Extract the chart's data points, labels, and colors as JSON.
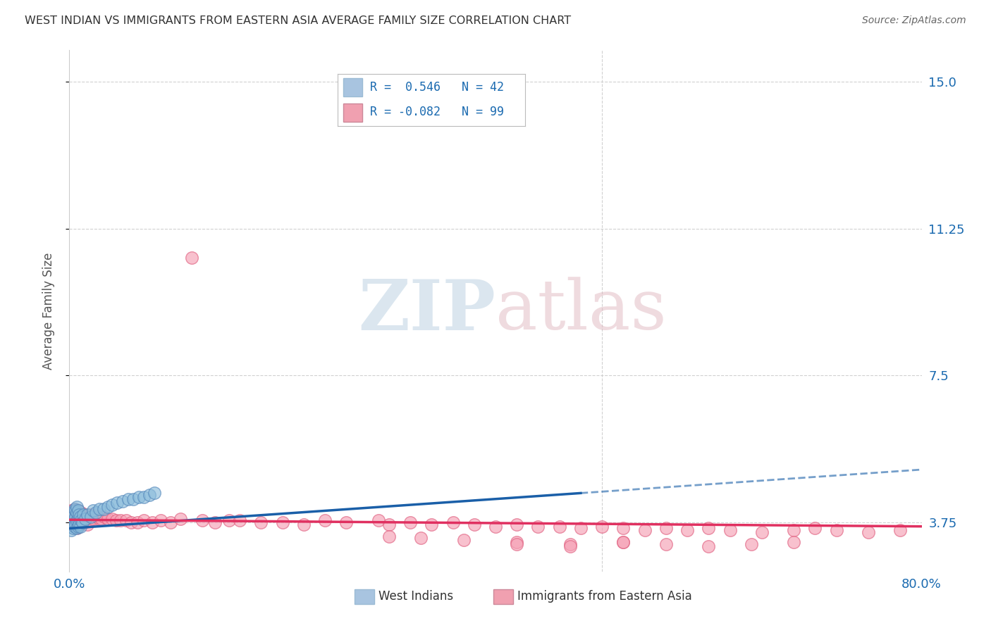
{
  "title": "WEST INDIAN VS IMMIGRANTS FROM EASTERN ASIA AVERAGE FAMILY SIZE CORRELATION CHART",
  "source": "Source: ZipAtlas.com",
  "ylabel": "Average Family Size",
  "xlim": [
    0.0,
    0.8
  ],
  "ylim": [
    2.5,
    15.8
  ],
  "yticks_right": [
    3.75,
    7.5,
    11.25,
    15.0
  ],
  "xticks": [
    0.0,
    0.1,
    0.2,
    0.3,
    0.4,
    0.5,
    0.6,
    0.7,
    0.8
  ],
  "background_color": "#ffffff",
  "grid_color": "#cccccc",
  "legend_color1": "#a8c4e0",
  "legend_color2": "#f0a0b0",
  "series1_color": "#8bbcdb",
  "series1_edge": "#5588bb",
  "series2_color": "#f5a0b5",
  "series2_edge": "#e06080",
  "trendline1_color": "#1a5fa8",
  "trendline2_color": "#e03060",
  "title_color": "#333333",
  "axis_value_color": "#1a6ab0",
  "source_color": "#666666",
  "west_indians_x": [
    0.002,
    0.003,
    0.003,
    0.004,
    0.004,
    0.005,
    0.005,
    0.005,
    0.006,
    0.006,
    0.006,
    0.007,
    0.007,
    0.007,
    0.007,
    0.008,
    0.008,
    0.008,
    0.009,
    0.009,
    0.01,
    0.01,
    0.011,
    0.012,
    0.013,
    0.015,
    0.017,
    0.02,
    0.022,
    0.025,
    0.028,
    0.032,
    0.036,
    0.04,
    0.045,
    0.05,
    0.055,
    0.06,
    0.065,
    0.07,
    0.075,
    0.08
  ],
  "west_indians_y": [
    3.55,
    3.75,
    4.0,
    3.6,
    3.9,
    3.65,
    3.85,
    4.1,
    3.7,
    3.9,
    4.05,
    3.6,
    3.8,
    4.0,
    4.15,
    3.65,
    3.85,
    4.05,
    3.7,
    3.95,
    3.65,
    3.9,
    3.8,
    3.75,
    3.95,
    3.85,
    3.95,
    3.9,
    4.05,
    4.0,
    4.1,
    4.1,
    4.15,
    4.2,
    4.25,
    4.3,
    4.35,
    4.35,
    4.4,
    4.4,
    4.45,
    4.5
  ],
  "east_asian_x": [
    0.001,
    0.002,
    0.002,
    0.003,
    0.003,
    0.004,
    0.004,
    0.005,
    0.005,
    0.005,
    0.006,
    0.006,
    0.006,
    0.007,
    0.007,
    0.007,
    0.008,
    0.008,
    0.008,
    0.009,
    0.009,
    0.01,
    0.01,
    0.011,
    0.011,
    0.012,
    0.013,
    0.014,
    0.015,
    0.016,
    0.017,
    0.018,
    0.019,
    0.02,
    0.022,
    0.024,
    0.026,
    0.028,
    0.03,
    0.033,
    0.036,
    0.04,
    0.044,
    0.048,
    0.053,
    0.058,
    0.064,
    0.07,
    0.078,
    0.086,
    0.095,
    0.104,
    0.115,
    0.125,
    0.137,
    0.15,
    0.16,
    0.18,
    0.2,
    0.22,
    0.24,
    0.26,
    0.29,
    0.3,
    0.32,
    0.34,
    0.36,
    0.38,
    0.4,
    0.42,
    0.44,
    0.46,
    0.48,
    0.5,
    0.52,
    0.54,
    0.56,
    0.58,
    0.6,
    0.62,
    0.65,
    0.68,
    0.7,
    0.72,
    0.75,
    0.78,
    0.3,
    0.33,
    0.37,
    0.42,
    0.47,
    0.52,
    0.42,
    0.47,
    0.52,
    0.56,
    0.6,
    0.64,
    0.68
  ],
  "east_asian_y": [
    3.75,
    3.9,
    4.05,
    3.7,
    3.95,
    3.75,
    4.0,
    3.7,
    3.9,
    4.1,
    3.65,
    3.85,
    4.05,
    3.6,
    3.8,
    4.0,
    3.65,
    3.85,
    4.05,
    3.7,
    3.9,
    3.75,
    3.95,
    3.8,
    4.0,
    3.85,
    3.95,
    3.75,
    3.85,
    3.95,
    3.7,
    3.9,
    3.8,
    3.95,
    3.85,
    3.95,
    3.9,
    3.85,
    3.85,
    3.9,
    3.85,
    3.85,
    3.8,
    3.8,
    3.8,
    3.75,
    3.75,
    3.8,
    3.75,
    3.8,
    3.75,
    3.85,
    10.5,
    3.8,
    3.75,
    3.8,
    3.8,
    3.75,
    3.75,
    3.7,
    3.8,
    3.75,
    3.8,
    3.7,
    3.75,
    3.7,
    3.75,
    3.7,
    3.65,
    3.7,
    3.65,
    3.65,
    3.6,
    3.65,
    3.6,
    3.55,
    3.6,
    3.55,
    3.6,
    3.55,
    3.5,
    3.55,
    3.6,
    3.55,
    3.5,
    3.55,
    3.4,
    3.35,
    3.3,
    3.25,
    3.2,
    3.25,
    3.2,
    3.15,
    3.25,
    3.2,
    3.15,
    3.2,
    3.25
  ]
}
